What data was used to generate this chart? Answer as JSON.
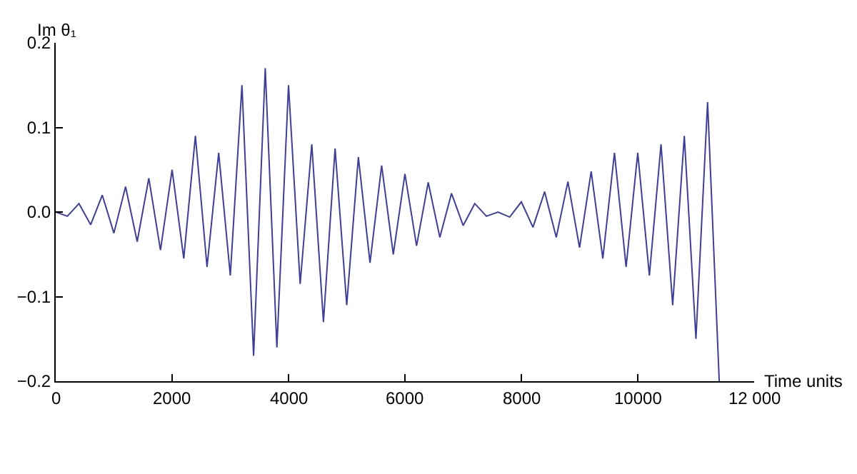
{
  "chart_data": {
    "type": "line",
    "xlabel": "Time units",
    "ylabel": "Im θ₁",
    "x": [
      0,
      200,
      400,
      600,
      800,
      1000,
      1200,
      1400,
      1600,
      1800,
      2000,
      2200,
      2400,
      2600,
      2800,
      3000,
      3200,
      3400,
      3600,
      3800,
      4000,
      4200,
      4400,
      4600,
      4800,
      5000,
      5200,
      5400,
      5600,
      5800,
      6000,
      6200,
      6400,
      6600,
      6800,
      7000,
      7200,
      7400,
      7600,
      7800,
      8000,
      8200,
      8400,
      8600,
      8800,
      9000,
      9200,
      9400,
      9600,
      9800,
      10000,
      10200,
      10400,
      10600,
      10800,
      11000,
      11200,
      11400
    ],
    "series": [
      {
        "color": "#3f3f96",
        "values": [
          0,
          -0.005,
          0.01,
          -0.015,
          0.02,
          -0.025,
          0.03,
          -0.035,
          0.04,
          -0.045,
          0.05,
          -0.055,
          0.09,
          -0.065,
          0.07,
          -0.075,
          0.15,
          -0.17,
          0.17,
          -0.16,
          0.15,
          -0.085,
          0.08,
          -0.13,
          0.075,
          -0.11,
          0.065,
          -0.06,
          0.055,
          -0.05,
          0.045,
          -0.04,
          0.035,
          -0.03,
          0.022,
          -0.016,
          0.01,
          -0.005,
          0.0,
          -0.006,
          0.012,
          -0.018,
          0.024,
          -0.03,
          0.036,
          -0.042,
          0.048,
          -0.055,
          0.07,
          -0.065,
          0.07,
          -0.075,
          0.08,
          -0.11,
          0.09,
          -0.15,
          0.13,
          -0.2
        ]
      }
    ],
    "xlim": [
      0,
      12000
    ],
    "xticks": [
      0,
      2000,
      4000,
      6000,
      8000,
      10000,
      {
        "value": 12000,
        "label": "12 000"
      }
    ],
    "ylim": [
      -0.2,
      0.2
    ],
    "yticks": [
      {
        "value": -0.2,
        "label": "−0.2"
      },
      {
        "value": -0.1,
        "label": "−0.1"
      },
      {
        "value": 0,
        "label": "0.0"
      },
      0.1,
      0.2
    ],
    "marker": "none",
    "line_style": "solid"
  }
}
